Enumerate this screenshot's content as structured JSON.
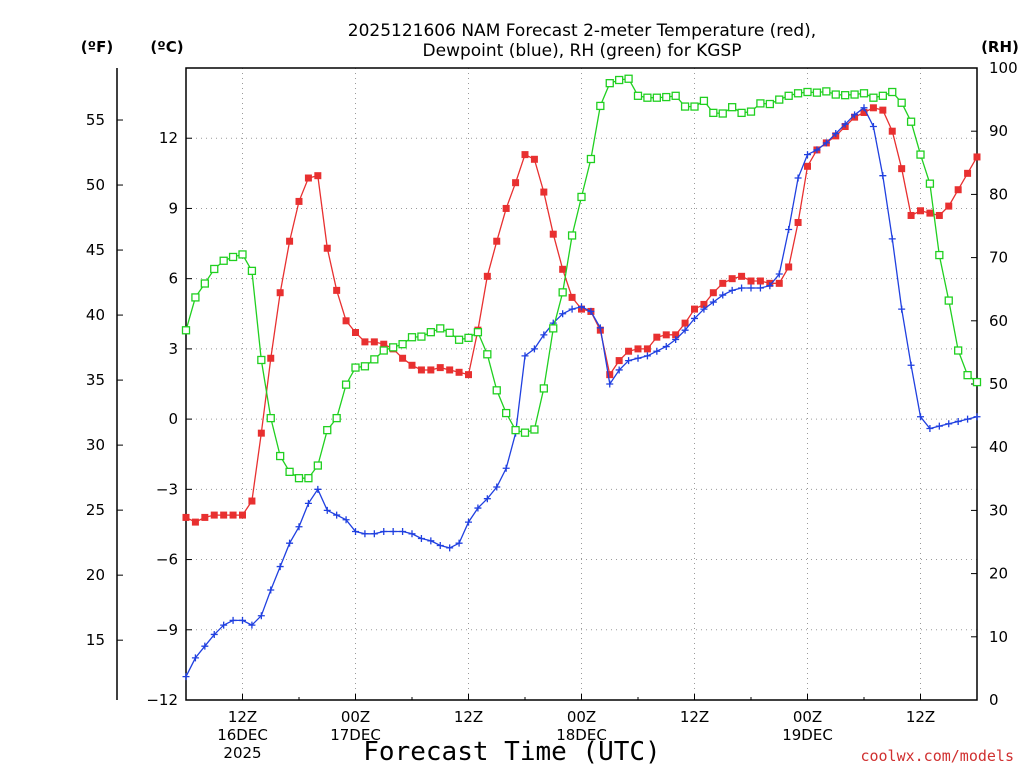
{
  "chart_data": {
    "type": "line",
    "title": "2025121606 NAM Forecast 2-meter Temperature (red),",
    "subtitle": "Dewpoint (blue), RH (green) for KGSP",
    "xlabel": "Forecast Time (UTC)",
    "credit": "coolwx.com/models",
    "units": {
      "fahrenheit": "(ºF)",
      "celsius": "(ºC)",
      "rh": "(RH)"
    },
    "x_unit": "hours since 2025-12-16 06Z",
    "xlim": [
      0,
      84
    ],
    "ylim_celsius": [
      -12,
      15
    ],
    "ylim_rh": [
      0,
      100
    ],
    "y_ticks_celsius": [
      "-12",
      "-9",
      "-6",
      "-3",
      "0",
      "3",
      "6",
      "9",
      "12"
    ],
    "y_ticks_fahrenheit": [
      "15",
      "20",
      "25",
      "30",
      "35",
      "40",
      "45",
      "50",
      "55"
    ],
    "y_ticks_rh": [
      "0",
      "10",
      "20",
      "30",
      "40",
      "50",
      "60",
      "70",
      "80",
      "90",
      "100"
    ],
    "x_ticks": [
      {
        "hour": 6,
        "lines": [
          "12Z",
          "16DEC",
          "2025"
        ]
      },
      {
        "hour": 18,
        "lines": [
          "00Z",
          "17DEC"
        ]
      },
      {
        "hour": 30,
        "lines": [
          "12Z"
        ]
      },
      {
        "hour": 42,
        "lines": [
          "00Z",
          "18DEC"
        ]
      },
      {
        "hour": 54,
        "lines": [
          "12Z"
        ]
      },
      {
        "hour": 66,
        "lines": [
          "00Z",
          "19DEC"
        ]
      },
      {
        "hour": 78,
        "lines": [
          "12Z"
        ]
      }
    ],
    "grid": true,
    "legend": "none",
    "series": [
      {
        "id": "temperature",
        "axis": "celsius",
        "color": "#e83030",
        "marker": "filled-square",
        "x": [
          0,
          1,
          2,
          3,
          4,
          5,
          6,
          7,
          8,
          9,
          10,
          11,
          12,
          13,
          14,
          15,
          16,
          17,
          18,
          19,
          20,
          21,
          22,
          23,
          24,
          25,
          26,
          27,
          28,
          29,
          30,
          31,
          32,
          33,
          34,
          35,
          36,
          37,
          38,
          39,
          40,
          41,
          42,
          43,
          44,
          45,
          46,
          47,
          48,
          49,
          50,
          51,
          52,
          53,
          54,
          55,
          56,
          57,
          58,
          59,
          60,
          61,
          62,
          63,
          64,
          65,
          66,
          67,
          68,
          69,
          70,
          71,
          72,
          73,
          74,
          75,
          76,
          77,
          78,
          79,
          80,
          81,
          82,
          83,
          84
        ],
        "values": [
          -4.2,
          -4.4,
          -4.2,
          -4.1,
          -4.1,
          -4.1,
          -4.1,
          -3.5,
          -0.6,
          2.6,
          5.4,
          7.6,
          9.3,
          10.3,
          10.4,
          7.3,
          5.5,
          4.2,
          3.7,
          3.3,
          3.3,
          3.2,
          3.0,
          2.6,
          2.3,
          2.1,
          2.1,
          2.2,
          2.1,
          2.0,
          1.9,
          3.8,
          6.1,
          7.6,
          9.0,
          10.1,
          11.3,
          11.1,
          9.7,
          7.9,
          6.4,
          5.2,
          4.7,
          4.6,
          3.8,
          1.9,
          2.5,
          2.9,
          3.0,
          3.0,
          3.5,
          3.6,
          3.6,
          4.1,
          4.7,
          4.9,
          5.4,
          5.8,
          6.0,
          6.1,
          5.9,
          5.9,
          5.8,
          5.8,
          6.5,
          8.4,
          10.8,
          11.5,
          11.8,
          12.1,
          12.5,
          12.9,
          13.1,
          13.3,
          13.2,
          12.3,
          10.7,
          8.7,
          8.9,
          8.8,
          8.7,
          9.1,
          9.8,
          10.5,
          11.2
        ]
      },
      {
        "id": "dewpoint",
        "axis": "celsius",
        "color": "#2040e0",
        "marker": "plus",
        "x": [
          0,
          1,
          2,
          3,
          4,
          5,
          6,
          7,
          8,
          9,
          10,
          11,
          12,
          13,
          14,
          15,
          16,
          17,
          18,
          19,
          20,
          21,
          22,
          23,
          24,
          25,
          26,
          27,
          28,
          29,
          30,
          31,
          32,
          33,
          34,
          35,
          36,
          37,
          38,
          39,
          40,
          41,
          42,
          43,
          44,
          45,
          46,
          47,
          48,
          49,
          50,
          51,
          52,
          53,
          54,
          55,
          56,
          57,
          58,
          59,
          60,
          61,
          62,
          63,
          64,
          65,
          66,
          67,
          68,
          69,
          70,
          71,
          72,
          73,
          74,
          75,
          76,
          77,
          78,
          79,
          80,
          81,
          82,
          83,
          84
        ],
        "values": [
          -11.0,
          -10.2,
          -9.7,
          -9.2,
          -8.8,
          -8.6,
          -8.6,
          -8.8,
          -8.4,
          -7.3,
          -6.3,
          -5.3,
          -4.6,
          -3.6,
          -3.0,
          -3.9,
          -4.1,
          -4.3,
          -4.8,
          -4.9,
          -4.9,
          -4.8,
          -4.8,
          -4.8,
          -4.9,
          -5.1,
          -5.2,
          -5.4,
          -5.5,
          -5.3,
          -4.4,
          -3.8,
          -3.4,
          -2.9,
          -2.1,
          -0.6,
          2.7,
          3.0,
          3.6,
          4.1,
          4.5,
          4.7,
          4.8,
          4.6,
          3.9,
          1.5,
          2.1,
          2.5,
          2.6,
          2.7,
          2.9,
          3.1,
          3.4,
          3.8,
          4.3,
          4.7,
          5.0,
          5.3,
          5.5,
          5.6,
          5.6,
          5.6,
          5.7,
          6.2,
          8.1,
          10.3,
          11.3,
          11.5,
          11.8,
          12.2,
          12.6,
          13.0,
          13.3,
          12.5,
          10.4,
          7.7,
          4.7,
          2.3,
          0.1,
          -0.4,
          -0.3,
          -0.2,
          -0.1,
          0.0,
          0.1
        ]
      },
      {
        "id": "rh",
        "axis": "rh",
        "color": "#20d020",
        "marker": "open-square",
        "x": [
          0,
          1,
          2,
          3,
          4,
          5,
          6,
          7,
          8,
          9,
          10,
          11,
          12,
          13,
          14,
          15,
          16,
          17,
          18,
          19,
          20,
          21,
          22,
          23,
          24,
          25,
          26,
          27,
          28,
          29,
          30,
          31,
          32,
          33,
          34,
          35,
          36,
          37,
          38,
          39,
          40,
          41,
          42,
          43,
          44,
          45,
          46,
          47,
          48,
          49,
          50,
          51,
          52,
          53,
          54,
          55,
          56,
          57,
          58,
          59,
          60,
          61,
          62,
          63,
          64,
          65,
          66,
          67,
          68,
          69,
          70,
          71,
          72,
          73,
          74,
          75,
          76,
          77,
          78,
          79,
          80,
          81,
          82,
          83,
          84
        ],
        "values": [
          58.5,
          63.7,
          65.9,
          68.2,
          69.5,
          70.1,
          70.5,
          67.9,
          53.8,
          44.6,
          38.6,
          36.1,
          35.1,
          35.1,
          37.1,
          42.7,
          44.6,
          49.9,
          52.6,
          52.8,
          53.9,
          55.3,
          55.8,
          56.3,
          57.4,
          57.5,
          58.2,
          58.8,
          58.1,
          57.0,
          57.3,
          58.2,
          54.7,
          49.0,
          45.4,
          42.7,
          42.3,
          42.8,
          49.3,
          58.8,
          64.5,
          73.5,
          79.6,
          85.6,
          94.0,
          97.6,
          98.1,
          98.3,
          95.6,
          95.3,
          95.3,
          95.4,
          95.6,
          93.9,
          93.9,
          94.8,
          92.9,
          92.8,
          93.8,
          92.9,
          93.1,
          94.4,
          94.3,
          95.0,
          95.6,
          96.0,
          96.2,
          96.1,
          96.3,
          95.8,
          95.7,
          95.8,
          96.0,
          95.3,
          95.6,
          96.2,
          94.5,
          91.5,
          86.3,
          81.7,
          70.4,
          63.2,
          55.3,
          51.4,
          50.3
        ]
      }
    ]
  }
}
